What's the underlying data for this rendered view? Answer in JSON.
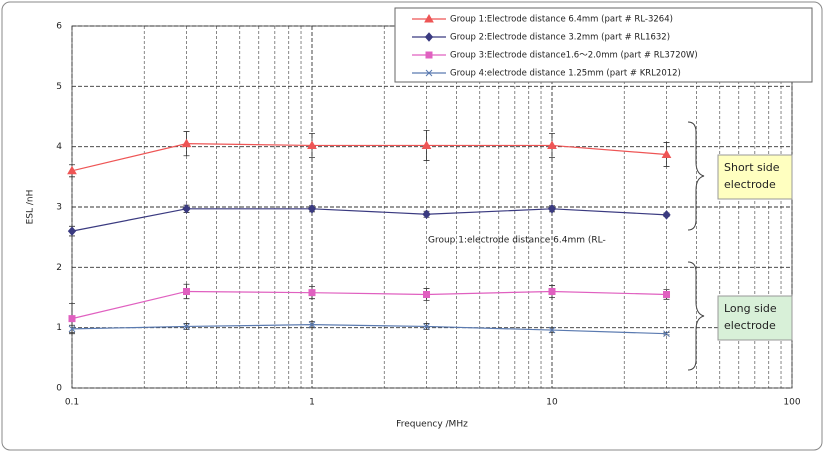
{
  "chart_data": {
    "type": "line",
    "x_label": "Frequency /MHz",
    "y_label": "ESL /nH",
    "x": [
      0.1,
      0.3,
      1,
      3,
      10,
      30
    ],
    "xlim": [
      0.1,
      100
    ],
    "xticks": [
      0.1,
      1,
      10,
      100
    ],
    "xscale": "log",
    "ylim": [
      0,
      6
    ],
    "yticks": [
      0,
      1,
      2,
      3,
      4,
      5,
      6
    ],
    "grid": true,
    "series": [
      {
        "name": "Group 1:Electrode distance 6.4mm (part # RL-3264)",
        "color": "#ee5555",
        "marker": "triangle",
        "values": [
          3.6,
          4.05,
          4.02,
          4.02,
          4.02,
          3.87
        ],
        "errors": [
          0.1,
          0.2,
          0.2,
          0.25,
          0.2,
          0.2
        ]
      },
      {
        "name": "Group 2:Electrode distance 3.2mm (part # RL1632)",
        "color": "#3a3a80",
        "marker": "diamond",
        "values": [
          2.6,
          2.97,
          2.97,
          2.88,
          2.97,
          2.87
        ],
        "errors": [
          0.08,
          0.06,
          0.05,
          0.05,
          0.05,
          0.03
        ]
      },
      {
        "name": "Group 3:Electrode distance1.6～2.0mm (part # RL3720W)",
        "color": "#e060c0",
        "marker": "square",
        "values": [
          1.15,
          1.6,
          1.58,
          1.55,
          1.6,
          1.55
        ],
        "errors": [
          0.25,
          0.12,
          0.1,
          0.1,
          0.1,
          0.08
        ]
      },
      {
        "name": "Group 4:electrode distance 1.25mm (part # KRL2012)",
        "color": "#5a7ab0",
        "marker": "star",
        "values": [
          0.98,
          1.02,
          1.05,
          1.02,
          0.96,
          0.9
        ],
        "errors": [
          0.06,
          0.05,
          0.05,
          0.05,
          0.04,
          0.02
        ]
      }
    ],
    "annotations": [
      {
        "lines": [
          "Short side",
          "electrode"
        ],
        "color": "#ffffc0"
      },
      {
        "lines": [
          "Long side",
          "electrode"
        ],
        "color": "#d8f0d8"
      }
    ],
    "note": "Group 1:electrode distance 6.4mm (RL-"
  }
}
